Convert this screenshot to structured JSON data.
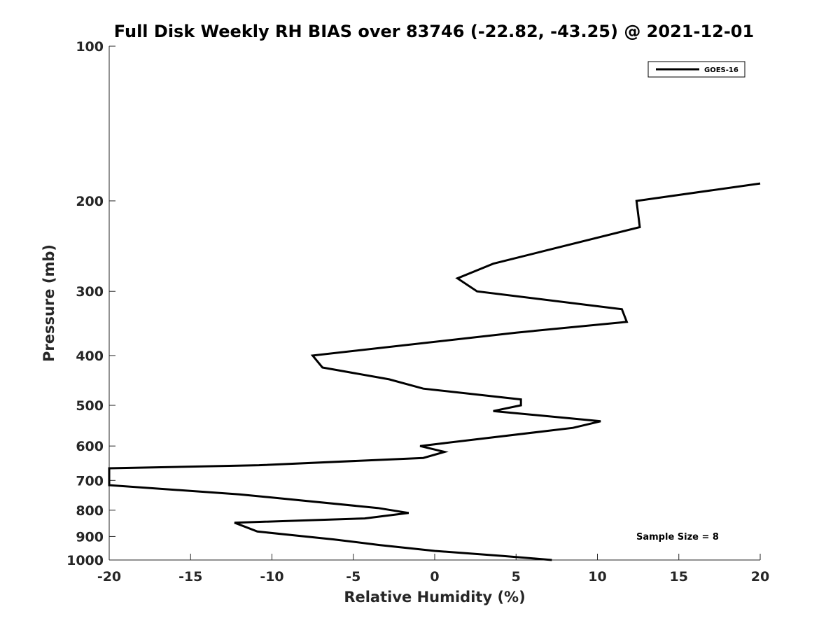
{
  "chart_data": {
    "type": "line",
    "title": "Full Disk Weekly RH BIAS over 83746 (-22.82, -43.25) @ 2021-12-01",
    "xlabel": "Relative Humidity (%)",
    "ylabel": "Pressure (mb)",
    "xlim": [
      -20,
      20
    ],
    "ylim": [
      100,
      1000
    ],
    "yscale": "log",
    "y_reversed": true,
    "grid": false,
    "legend_position": "top-right",
    "x_ticks": [
      "-20",
      "-15",
      "-10",
      "-5",
      "0",
      "5",
      "10",
      "15",
      "20"
    ],
    "y_ticks": [
      "100",
      "200",
      "300",
      "400",
      "500",
      "600",
      "700",
      "800",
      "900",
      "1000"
    ],
    "annotation": "Sample Size = 8",
    "colors": {
      "series": "#000000",
      "axes": "#262626"
    },
    "series": [
      {
        "name": "GOES-16",
        "points": [
          {
            "x": 20.0,
            "y": 185
          },
          {
            "x": 12.4,
            "y": 200
          },
          {
            "x": 12.6,
            "y": 225
          },
          {
            "x": 6.8,
            "y": 250
          },
          {
            "x": 3.6,
            "y": 265
          },
          {
            "x": 1.4,
            "y": 283
          },
          {
            "x": 2.6,
            "y": 300
          },
          {
            "x": 11.5,
            "y": 325
          },
          {
            "x": 11.8,
            "y": 344
          },
          {
            "x": 5.0,
            "y": 361
          },
          {
            "x": -7.5,
            "y": 400
          },
          {
            "x": -6.9,
            "y": 422
          },
          {
            "x": -2.8,
            "y": 445
          },
          {
            "x": -0.7,
            "y": 464
          },
          {
            "x": 5.3,
            "y": 487
          },
          {
            "x": 5.3,
            "y": 500
          },
          {
            "x": 3.6,
            "y": 513
          },
          {
            "x": 10.2,
            "y": 537
          },
          {
            "x": 8.5,
            "y": 553
          },
          {
            "x": -0.9,
            "y": 600
          },
          {
            "x": 0.6,
            "y": 616
          },
          {
            "x": -0.7,
            "y": 633
          },
          {
            "x": -10.8,
            "y": 654
          },
          {
            "x": -20.0,
            "y": 663
          },
          {
            "x": -20.0,
            "y": 715
          },
          {
            "x": -12.0,
            "y": 745
          },
          {
            "x": -3.5,
            "y": 792
          },
          {
            "x": -1.6,
            "y": 810
          },
          {
            "x": -4.3,
            "y": 830
          },
          {
            "x": -12.3,
            "y": 846
          },
          {
            "x": -10.9,
            "y": 880
          },
          {
            "x": -6.2,
            "y": 912
          },
          {
            "x": -3.4,
            "y": 935
          },
          {
            "x": 0.0,
            "y": 960
          },
          {
            "x": 4.2,
            "y": 982
          },
          {
            "x": 7.2,
            "y": 1000
          }
        ]
      }
    ]
  }
}
